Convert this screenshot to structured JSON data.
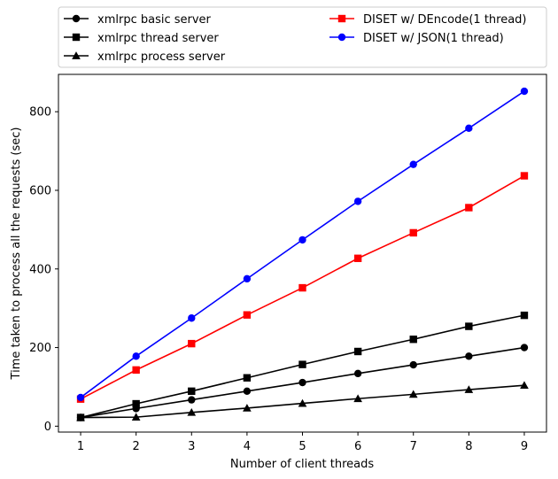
{
  "chart_data": {
    "type": "line",
    "xlabel": "Number of client threads",
    "ylabel": "Time taken to process all the requests (sec)",
    "x": [
      1,
      2,
      3,
      4,
      5,
      6,
      7,
      8,
      9
    ],
    "xlim": [
      0.6,
      9.4
    ],
    "ylim": [
      -15,
      895
    ],
    "xticks": [
      1,
      2,
      3,
      4,
      5,
      6,
      7,
      8,
      9
    ],
    "yticks": [
      0,
      200,
      400,
      600,
      800
    ],
    "grid": false,
    "legend_placement": "above plot, two columns",
    "series": [
      {
        "name": "xmlrpc basic server",
        "color": "#000000",
        "marker": "circle",
        "values": [
          22,
          45,
          67,
          89,
          111,
          134,
          156,
          178,
          200
        ]
      },
      {
        "name": "xmlrpc thread server",
        "color": "#000000",
        "marker": "square",
        "values": [
          22,
          57,
          89,
          123,
          157,
          190,
          221,
          254,
          282
        ]
      },
      {
        "name": "xmlrpc process server",
        "color": "#000000",
        "marker": "triangle",
        "values": [
          22,
          23,
          35,
          46,
          58,
          70,
          81,
          93,
          104
        ]
      },
      {
        "name": "DISET w/ DEncode(1 thread)",
        "color": "#ff0000",
        "marker": "square",
        "values": [
          69,
          143,
          210,
          283,
          352,
          427,
          492,
          556,
          637
        ]
      },
      {
        "name": "DISET w/ JSON(1 thread)",
        "color": "#0000ff",
        "marker": "circle",
        "values": [
          73,
          178,
          275,
          375,
          474,
          572,
          666,
          758,
          852
        ]
      }
    ]
  }
}
